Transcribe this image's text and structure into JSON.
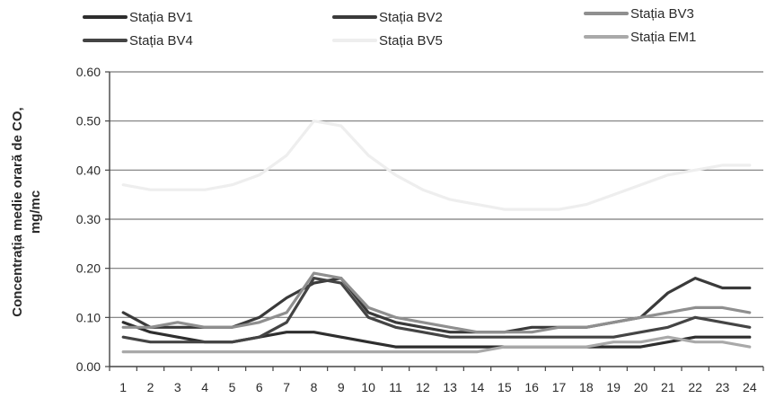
{
  "chart_data": {
    "type": "line",
    "title": "",
    "xlabel": "",
    "ylabel_line1": "Concentrația medie orară de CO,",
    "ylabel_line2": "mg/mc",
    "ylim": [
      0,
      0.6
    ],
    "y_ticks": [
      "0.00",
      "0.10",
      "0.20",
      "0.30",
      "0.40",
      "0.50",
      "0.60"
    ],
    "categories": [
      "1",
      "2",
      "3",
      "4",
      "5",
      "6",
      "7",
      "8",
      "9",
      "10",
      "11",
      "12",
      "13",
      "14",
      "15",
      "16",
      "17",
      "18",
      "19",
      "20",
      "21",
      "22",
      "23",
      "24"
    ],
    "grid": "horizontal",
    "legend_position": "top",
    "series": [
      {
        "name": "Stația BV1",
        "color": "#2e2e2e",
        "values": [
          0.09,
          0.07,
          0.06,
          0.05,
          0.05,
          0.06,
          0.07,
          0.07,
          0.06,
          0.05,
          0.04,
          0.04,
          0.04,
          0.04,
          0.04,
          0.04,
          0.04,
          0.04,
          0.04,
          0.04,
          0.05,
          0.06,
          0.06,
          0.06
        ]
      },
      {
        "name": "Stația BV2",
        "color": "#3a3a3a",
        "values": [
          0.11,
          0.08,
          0.08,
          0.08,
          0.08,
          0.1,
          0.14,
          0.17,
          0.18,
          0.11,
          0.09,
          0.08,
          0.07,
          0.07,
          0.07,
          0.08,
          0.08,
          0.08,
          0.09,
          0.1,
          0.15,
          0.18,
          0.16,
          0.16
        ]
      },
      {
        "name": "Stația BV3",
        "color": "#8f8f8f",
        "values": [
          0.08,
          0.08,
          0.09,
          0.08,
          0.08,
          0.09,
          0.11,
          0.19,
          0.18,
          0.12,
          0.1,
          0.09,
          0.08,
          0.07,
          0.07,
          0.07,
          0.08,
          0.08,
          0.09,
          0.1,
          0.11,
          0.12,
          0.12,
          0.11
        ]
      },
      {
        "name": "Stația BV4",
        "color": "#444444",
        "values": [
          0.06,
          0.05,
          0.05,
          0.05,
          0.05,
          0.06,
          0.09,
          0.18,
          0.17,
          0.1,
          0.08,
          0.07,
          0.06,
          0.06,
          0.06,
          0.06,
          0.06,
          0.06,
          0.06,
          0.07,
          0.08,
          0.1,
          0.09,
          0.08
        ]
      },
      {
        "name": "Stația BV5",
        "color": "#eeeeee",
        "values": [
          0.37,
          0.36,
          0.36,
          0.36,
          0.37,
          0.39,
          0.43,
          0.5,
          0.49,
          0.43,
          0.39,
          0.36,
          0.34,
          0.33,
          0.32,
          0.32,
          0.32,
          0.33,
          0.35,
          0.37,
          0.39,
          0.4,
          0.41,
          0.41
        ]
      },
      {
        "name": "Stația EM1",
        "color": "#a9a9a9",
        "values": [
          0.03,
          0.03,
          0.03,
          0.03,
          0.03,
          0.03,
          0.03,
          0.03,
          0.03,
          0.03,
          0.03,
          0.03,
          0.03,
          0.03,
          0.04,
          0.04,
          0.04,
          0.04,
          0.05,
          0.05,
          0.06,
          0.05,
          0.05,
          0.04
        ]
      }
    ]
  }
}
